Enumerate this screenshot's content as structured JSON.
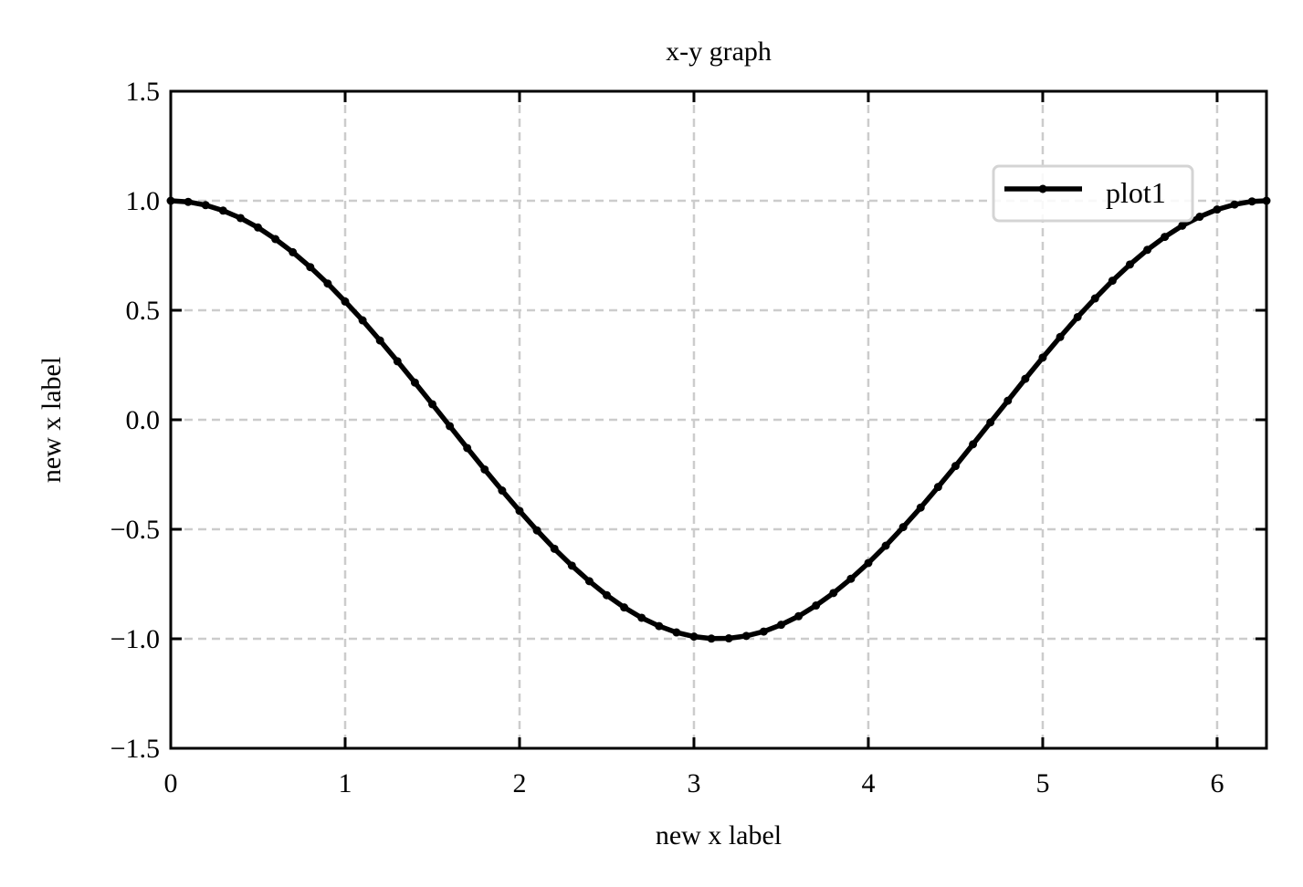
{
  "chart_data": {
    "type": "line",
    "title": "x-y graph",
    "xlabel": "new x label",
    "ylabel": "new x label",
    "xlim": [
      0,
      6.283
    ],
    "ylim": [
      -1.5,
      1.5
    ],
    "x_ticks": [
      0,
      1,
      2,
      3,
      4,
      5,
      6
    ],
    "x_tick_labels": [
      "0",
      "1",
      "2",
      "3",
      "4",
      "5",
      "6"
    ],
    "y_ticks": [
      -1.5,
      -1.0,
      -0.5,
      0.0,
      0.5,
      1.0,
      1.5
    ],
    "y_tick_labels": [
      "−1.5",
      "−1.0",
      "−0.5",
      "0.0",
      "0.5",
      "1.0",
      "1.5"
    ],
    "grid": true,
    "legend_position": "top-right",
    "series": [
      {
        "name": "plot1",
        "color": "#000000",
        "marker": "dot",
        "x": [
          0.0,
          0.1,
          0.2,
          0.3,
          0.4,
          0.5,
          0.6,
          0.7,
          0.8,
          0.9,
          1.0,
          1.1,
          1.2,
          1.3,
          1.4,
          1.5,
          1.6,
          1.7,
          1.8,
          1.9,
          2.0,
          2.1,
          2.2,
          2.3,
          2.4,
          2.5,
          2.6,
          2.7,
          2.8,
          2.9,
          3.0,
          3.1,
          3.2,
          3.3,
          3.4,
          3.5,
          3.6,
          3.7,
          3.8,
          3.9,
          4.0,
          4.1,
          4.2,
          4.3,
          4.4,
          4.5,
          4.6,
          4.7,
          4.8,
          4.9,
          5.0,
          5.1,
          5.2,
          5.3,
          5.4,
          5.5,
          5.6,
          5.7,
          5.8,
          5.9,
          6.0,
          6.1,
          6.2,
          6.283
        ],
        "y": [
          1.0,
          0.995,
          0.98,
          0.955,
          0.921,
          0.878,
          0.825,
          0.765,
          0.697,
          0.622,
          0.54,
          0.454,
          0.362,
          0.267,
          0.17,
          0.071,
          -0.029,
          -0.129,
          -0.227,
          -0.323,
          -0.416,
          -0.505,
          -0.589,
          -0.666,
          -0.737,
          -0.801,
          -0.857,
          -0.904,
          -0.942,
          -0.971,
          -0.99,
          -0.999,
          -0.998,
          -0.987,
          -0.967,
          -0.936,
          -0.897,
          -0.848,
          -0.791,
          -0.726,
          -0.654,
          -0.575,
          -0.49,
          -0.401,
          -0.307,
          -0.211,
          -0.112,
          -0.012,
          0.087,
          0.187,
          0.284,
          0.378,
          0.469,
          0.554,
          0.635,
          0.709,
          0.776,
          0.835,
          0.886,
          0.927,
          0.96,
          0.983,
          0.997,
          1.0
        ]
      }
    ]
  }
}
